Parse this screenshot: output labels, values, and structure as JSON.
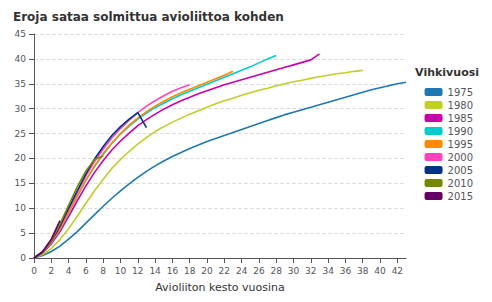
{
  "chart_data": {
    "type": "line",
    "title": "Eroja sataa solmittua avioliittoa kohden",
    "xlabel": "Avioliiton kesto vuosina",
    "legend_title": "Vihkivuosi",
    "legend": "right",
    "grid": "y",
    "xlim": [
      0,
      43
    ],
    "ylim": [
      0,
      45
    ],
    "xticks": [
      0,
      2,
      4,
      6,
      8,
      10,
      12,
      14,
      16,
      18,
      20,
      22,
      24,
      26,
      28,
      30,
      32,
      34,
      36,
      38,
      40,
      42
    ],
    "yticks": [
      0,
      5,
      10,
      15,
      20,
      25,
      30,
      35,
      40,
      45
    ],
    "series": [
      {
        "name": "1975",
        "color": "#1F78B4",
        "x": [
          0,
          1,
          2,
          3,
          4,
          5,
          6,
          7,
          8,
          9,
          10,
          11,
          12,
          13,
          14,
          15,
          16,
          17,
          18,
          19,
          20,
          21,
          22,
          23,
          24,
          25,
          26,
          27,
          28,
          29,
          30,
          31,
          32,
          33,
          34,
          35,
          36,
          37,
          38,
          39,
          40,
          41,
          42,
          43
        ],
        "values": [
          0,
          0.5,
          1.3,
          2.4,
          3.8,
          5.3,
          7.0,
          8.7,
          10.4,
          12.0,
          13.5,
          14.9,
          16.2,
          17.4,
          18.5,
          19.5,
          20.4,
          21.2,
          22.0,
          22.7,
          23.4,
          24.0,
          24.6,
          25.2,
          25.8,
          26.4,
          27.0,
          27.6,
          28.2,
          28.8,
          29.3,
          29.8,
          30.3,
          30.8,
          31.3,
          31.8,
          32.3,
          32.8,
          33.3,
          33.8,
          34.2,
          34.6,
          35.0,
          35.3
        ]
      },
      {
        "name": "1980",
        "color": "#BFCE2B",
        "x": [
          0,
          1,
          2,
          3,
          4,
          5,
          6,
          7,
          8,
          9,
          10,
          11,
          12,
          13,
          14,
          15,
          16,
          17,
          18,
          19,
          20,
          21,
          22,
          23,
          24,
          25,
          26,
          27,
          28,
          29,
          30,
          31,
          32,
          33,
          34,
          35,
          36,
          37,
          38
        ],
        "values": [
          0,
          0.7,
          1.9,
          3.7,
          5.9,
          8.4,
          11.0,
          13.5,
          15.8,
          18.0,
          19.8,
          21.4,
          22.9,
          24.2,
          25.4,
          26.4,
          27.3,
          28.1,
          28.9,
          29.6,
          30.3,
          31.0,
          31.6,
          32.1,
          32.7,
          33.2,
          33.7,
          34.1,
          34.6,
          35.0,
          35.4,
          35.7,
          36.1,
          36.4,
          36.7,
          37.0,
          37.2,
          37.5,
          37.7
        ]
      },
      {
        "name": "1985",
        "color": "#CC00AA",
        "x": [
          0,
          1,
          2,
          3,
          4,
          5,
          6,
          7,
          8,
          9,
          10,
          11,
          12,
          13,
          14,
          15,
          16,
          17,
          18,
          19,
          20,
          21,
          22,
          23,
          24,
          25,
          26,
          27,
          28,
          29,
          30,
          31,
          32,
          33
        ],
        "values": [
          0,
          1.0,
          2.8,
          5.3,
          8.3,
          11.5,
          14.5,
          17.2,
          19.6,
          21.7,
          23.5,
          25.1,
          26.6,
          27.8,
          28.9,
          29.9,
          30.8,
          31.6,
          32.3,
          33.0,
          33.6,
          34.2,
          34.8,
          35.3,
          35.8,
          36.3,
          36.8,
          37.3,
          37.8,
          38.3,
          38.8,
          39.3,
          39.8,
          41.0
        ]
      },
      {
        "name": "1990",
        "color": "#00CCCC",
        "x": [
          0,
          1,
          2,
          3,
          4,
          5,
          6,
          7,
          8,
          9,
          10,
          11,
          12,
          13,
          14,
          15,
          16,
          17,
          18,
          19,
          20,
          21,
          22,
          23,
          24,
          25,
          26,
          27,
          28
        ],
        "values": [
          0,
          1.1,
          3.1,
          5.8,
          9.0,
          12.4,
          15.6,
          18.4,
          20.8,
          23.0,
          24.9,
          26.5,
          27.9,
          29.1,
          30.2,
          31.1,
          32.0,
          32.8,
          33.5,
          34.2,
          34.9,
          35.6,
          36.3,
          37.0,
          37.7,
          38.4,
          39.2,
          40.0,
          40.7
        ]
      },
      {
        "name": "1995",
        "color": "#FF8800",
        "x": [
          0,
          1,
          2,
          3,
          4,
          5,
          6,
          7,
          8,
          9,
          10,
          11,
          12,
          13,
          14,
          15,
          16,
          17,
          18,
          19,
          20,
          21,
          22,
          23
        ],
        "values": [
          0,
          1.1,
          3.1,
          5.8,
          9.1,
          12.5,
          15.7,
          18.5,
          21.0,
          23.1,
          25.0,
          26.7,
          28.1,
          29.4,
          30.5,
          31.5,
          32.4,
          33.2,
          33.9,
          34.6,
          35.3,
          36.0,
          36.7,
          37.5
        ]
      },
      {
        "name": "2000",
        "color": "#FF44BB",
        "x": [
          0,
          1,
          2,
          3,
          4,
          5,
          6,
          7,
          8,
          9,
          10,
          11,
          12,
          13,
          14,
          15,
          16,
          17,
          18
        ],
        "values": [
          0,
          1.2,
          3.3,
          6.2,
          9.7,
          13.2,
          16.5,
          19.4,
          21.9,
          24.1,
          26.0,
          27.7,
          29.2,
          30.5,
          31.6,
          32.6,
          33.5,
          34.2,
          34.8
        ]
      },
      {
        "name": "2005",
        "color": "#003388",
        "x": [
          0,
          1,
          2,
          3,
          4,
          5,
          6,
          7,
          8,
          9,
          10,
          11,
          12,
          13
        ],
        "values": [
          0,
          1.2,
          3.4,
          6.4,
          10.0,
          13.5,
          16.9,
          19.9,
          22.4,
          24.6,
          26.4,
          27.9,
          29.2,
          26.2
        ]
      },
      {
        "name": "2010",
        "color": "#778800",
        "x": [
          0,
          1,
          2,
          3,
          4,
          5,
          6,
          7,
          8
        ],
        "values": [
          0,
          1.2,
          3.5,
          6.8,
          10.6,
          14.3,
          17.5,
          19.8,
          20.5
        ]
      },
      {
        "name": "2015",
        "color": "#660066",
        "x": [
          0,
          1,
          2,
          3
        ],
        "values": [
          0,
          1.3,
          3.8,
          7.5
        ]
      }
    ]
  }
}
